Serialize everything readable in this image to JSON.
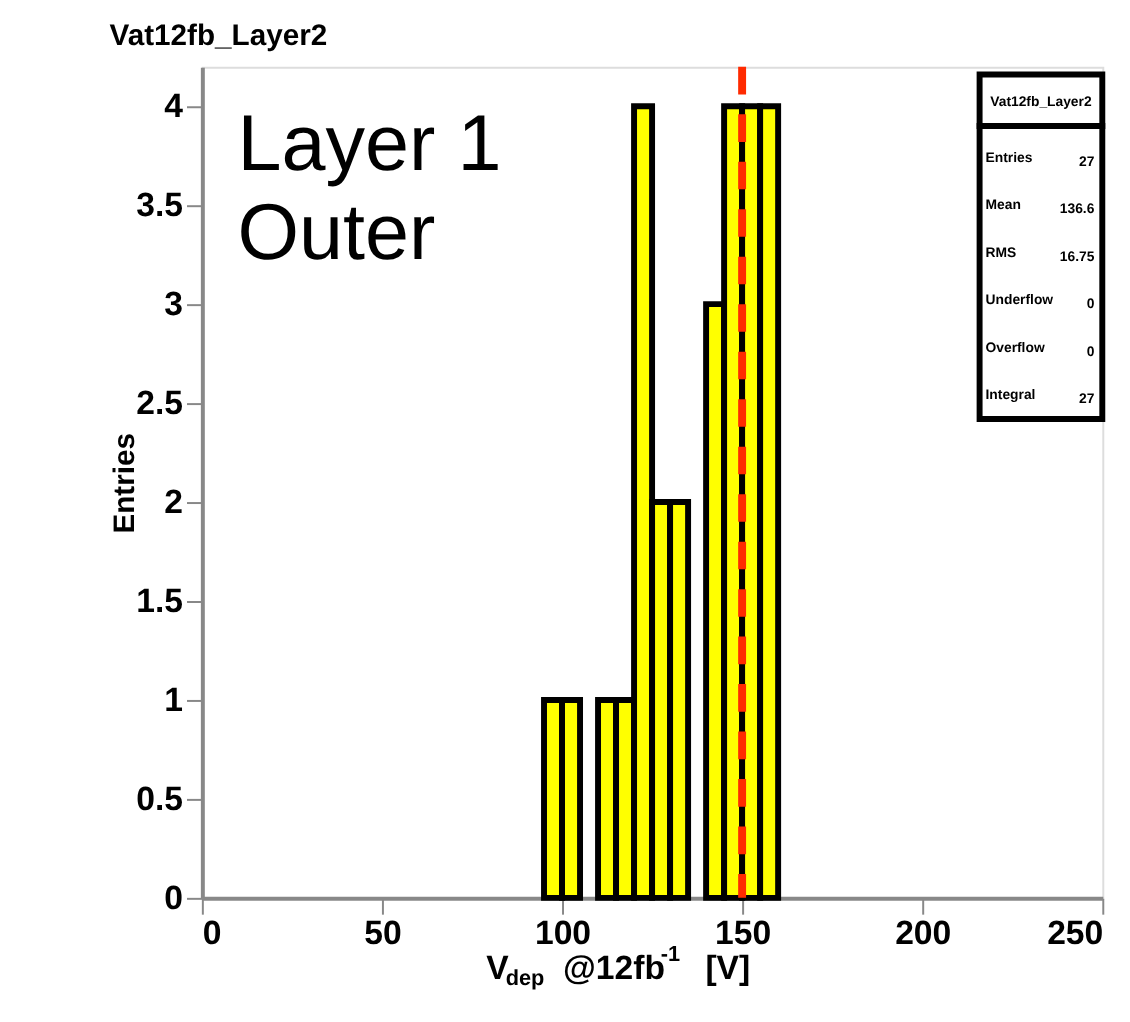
{
  "chart_data": {
    "type": "histogram",
    "title": "Vat12fb_Layer2",
    "xlabel": "V$_{dep}$ @12fb$^{-1}$ [V]",
    "ylabel": "Entries",
    "bins": [
      95,
      100,
      105,
      110,
      115,
      120,
      125,
      130,
      135,
      140,
      145,
      150,
      155,
      160
    ],
    "values": [
      1,
      1,
      0,
      1,
      1,
      4,
      2,
      2,
      0,
      3,
      4,
      4,
      4
    ],
    "color": "#ffff00",
    "xlim": [
      0,
      250
    ],
    "xticks": [
      0,
      50,
      100,
      150,
      200,
      250
    ],
    "ylim": [
      0,
      4.2
    ],
    "yticks": [
      0,
      0.5,
      1,
      1.5,
      2,
      2.5,
      3,
      3.5,
      4
    ],
    "ref_lines": [
      {
        "axis": "x",
        "value": 150,
        "color": "#ff2a00",
        "line_style": "dashed"
      }
    ],
    "annotations": [
      "Layer 1",
      "Outer",
      "Vat12fb_Layer2",
      "Entries 27",
      "Mean 136.6",
      "RMS 16.75",
      "Underflow 0",
      "Overflow 0",
      "Integral 27"
    ]
  }
}
